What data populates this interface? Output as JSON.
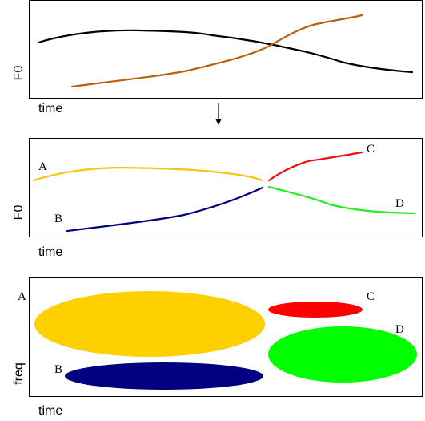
{
  "panels": [
    {
      "y_label": "F0",
      "x_label": "time"
    },
    {
      "y_label": "F0",
      "x_label": "time",
      "labels": [
        "A",
        "B",
        "C",
        "D"
      ]
    },
    {
      "y_label": "freq",
      "x_label": "time",
      "labels": [
        "A",
        "B",
        "C",
        "D"
      ]
    }
  ]
}
